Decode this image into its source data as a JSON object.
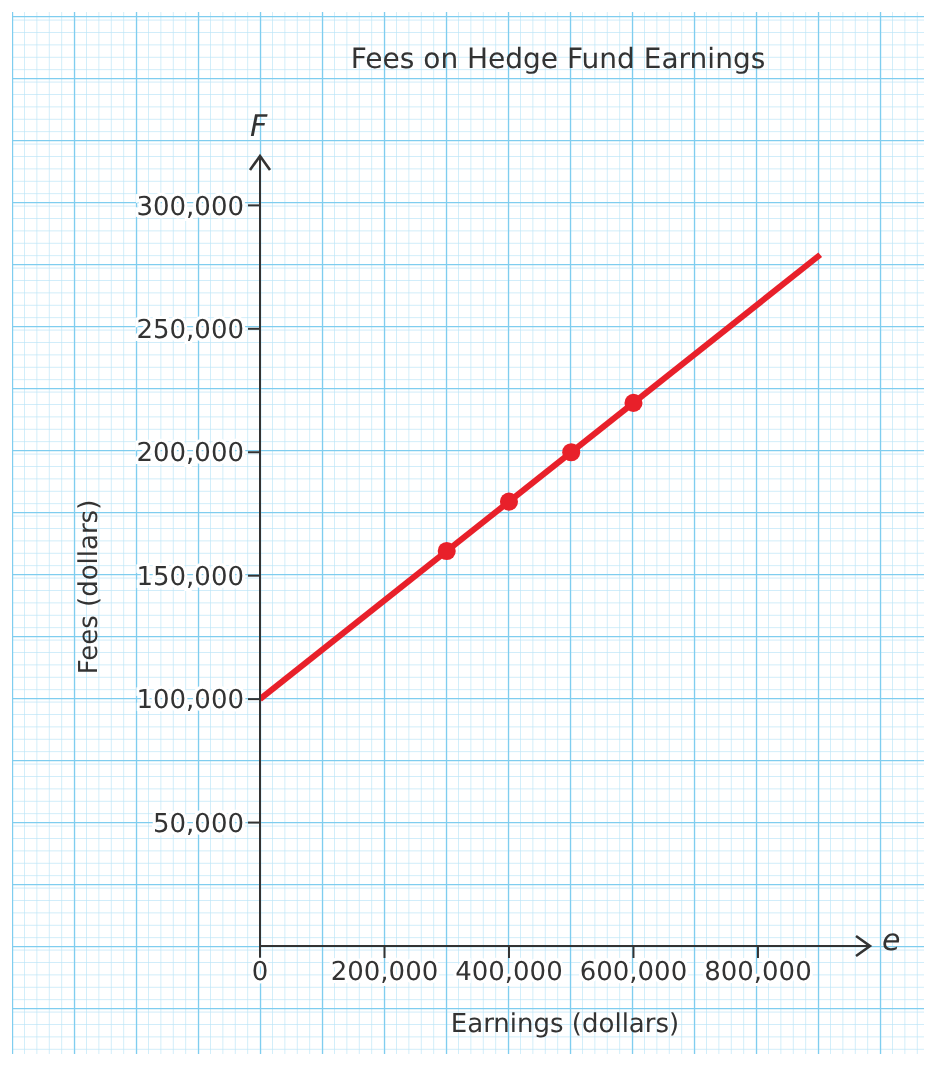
{
  "chart_data": {
    "type": "line",
    "title": "Fees on Hedge Fund Earnings",
    "xlabel": "Earnings (dollars)",
    "ylabel": "Fees (dollars)",
    "annotations": [
      "F",
      "e"
    ],
    "xlim": [
      0,
      980000
    ],
    "ylim": [
      0,
      320000
    ],
    "xticks": [
      {
        "value": 0,
        "label": "0"
      },
      {
        "value": 200000,
        "label": "200,000"
      },
      {
        "value": 400000,
        "label": "400,000"
      },
      {
        "value": 600000,
        "label": "600,000"
      },
      {
        "value": 800000,
        "label": "800,000"
      }
    ],
    "yticks": [
      {
        "value": 50000,
        "label": "50,000"
      },
      {
        "value": 100000,
        "label": "100,000"
      },
      {
        "value": 150000,
        "label": "150,000"
      },
      {
        "value": 200000,
        "label": "200,000"
      },
      {
        "value": 250000,
        "label": "250,000"
      },
      {
        "value": 300000,
        "label": "300,000"
      }
    ],
    "series": [
      {
        "color": "#e8202a",
        "x": [
          0,
          900000
        ],
        "values": [
          100000,
          280000
        ]
      },
      {
        "type": "scatter",
        "color": "#e8202a",
        "marker": "circle",
        "x": [
          300000,
          400000,
          500000,
          600000
        ],
        "values": [
          160000,
          180000,
          200000,
          220000
        ]
      }
    ]
  }
}
